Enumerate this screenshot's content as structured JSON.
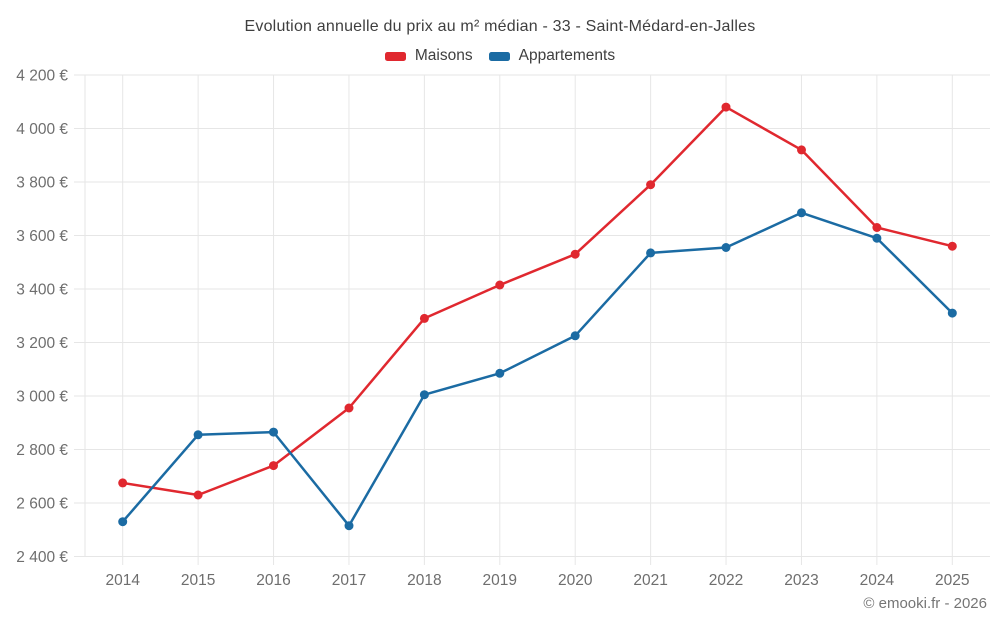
{
  "header": {
    "title": "Evolution annuelle du prix au m² médian - 33 - Saint-Médard-en-Jalles"
  },
  "legend": {
    "items": [
      {
        "label": "Maisons",
        "color": "#e0282f"
      },
      {
        "label": "Appartements",
        "color": "#1b6ba3"
      }
    ]
  },
  "footer": {
    "attribution": "© emooki.fr - 2026"
  },
  "chart_data": {
    "type": "line",
    "title": "Evolution annuelle du prix au m² médian - 33 - Saint-Médard-en-Jalles",
    "categories": [
      "2014",
      "2015",
      "2016",
      "2017",
      "2018",
      "2019",
      "2020",
      "2021",
      "2022",
      "2023",
      "2024",
      "2025"
    ],
    "series": [
      {
        "name": "Maisons",
        "color": "#e0282f",
        "values": [
          2675,
          2630,
          2740,
          2955,
          3290,
          3415,
          3530,
          3790,
          4080,
          3920,
          3630,
          3560
        ]
      },
      {
        "name": "Appartements",
        "color": "#1b6ba3",
        "values": [
          2530,
          2855,
          2865,
          2515,
          3005,
          3085,
          3225,
          3535,
          3555,
          3685,
          3590,
          3310
        ]
      }
    ],
    "xlabel": "",
    "ylabel": "",
    "ylim": [
      2400,
      4200
    ],
    "ytick_step": 200,
    "ytick_labels": [
      "2 400 €",
      "2 600 €",
      "2 800 €",
      "3 000 €",
      "3 200 €",
      "3 400 €",
      "3 600 €",
      "3 800 €",
      "4 000 €",
      "4 200 €"
    ],
    "grid": true,
    "legend_position": "top",
    "styles": {
      "grid_color": "#e6e6e6",
      "tick_label_color": "#6e6e6e",
      "title_color": "#3f3f3f",
      "marker_radius": 4.5,
      "line_width": 2.5
    }
  }
}
